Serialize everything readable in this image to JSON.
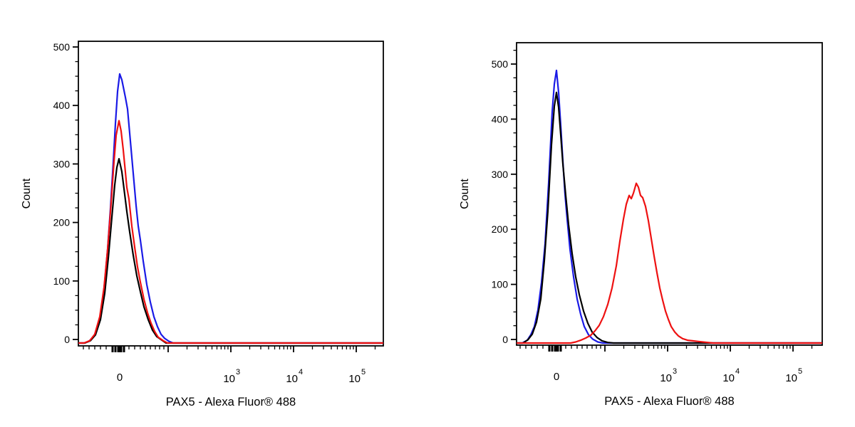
{
  "figure": {
    "description": "Two flow cytometry histogram overlays, side by side",
    "background_color": "#ffffff",
    "axis_color": "#000000"
  },
  "chart_data": [
    {
      "panel": "left",
      "type": "line",
      "subtype": "flow-cytometry-histogram",
      "title": "",
      "xlabel": "PAX5 - Alexa Fluor® 488",
      "ylabel": "Count",
      "x_axis": {
        "scale": "biexponential-logicle",
        "tick_labels": [
          "0",
          "10^3",
          "10^4",
          "10^5"
        ],
        "unlabeled_major_ticks": [
          "10^2"
        ],
        "display_max": "~2.6x10^5",
        "grid": false
      },
      "y_axis": {
        "ticks": [
          0,
          100,
          200,
          300,
          400,
          500
        ],
        "tick_labels": [
          "0",
          "100",
          "200",
          "300",
          "400",
          "500"
        ],
        "minor_step": 25,
        "ylim": [
          0,
          510
        ],
        "grid": false
      },
      "legend": null,
      "series": [
        {
          "name": "blue",
          "color": "#1a1ae6",
          "peak_count": 460,
          "peak_position": "0",
          "points_format": "[x_offset_px_from_zero_tick (88px per decade), count]",
          "points": [
            [
              -50,
              0
            ],
            [
              -43,
              3
            ],
            [
              -36,
              12
            ],
            [
              -30,
              30
            ],
            [
              -25,
              60
            ],
            [
              -21,
              105
            ],
            [
              -17,
              160
            ],
            [
              -13,
              230
            ],
            [
              -9,
              310
            ],
            [
              -6,
              375
            ],
            [
              -3,
              430
            ],
            [
              0,
              460
            ],
            [
              3,
              450
            ],
            [
              6,
              432
            ],
            [
              8,
              420
            ],
            [
              11,
              400
            ],
            [
              15,
              345
            ],
            [
              19,
              290
            ],
            [
              23,
              235
            ],
            [
              26,
              200
            ],
            [
              29,
              176
            ],
            [
              33,
              140
            ],
            [
              38,
              100
            ],
            [
              43,
              70
            ],
            [
              48,
              45
            ],
            [
              53,
              28
            ],
            [
              58,
              15
            ],
            [
              63,
              8
            ],
            [
              69,
              3
            ],
            [
              75,
              0
            ]
          ]
        },
        {
          "name": "black",
          "color": "#000000",
          "peak_count": 315,
          "peak_position": "0",
          "points_format": "[x_offset_px_from_zero_tick (88px per decade), count]",
          "points": [
            [
              -49,
              0
            ],
            [
              -41,
              4
            ],
            [
              -34,
              14
            ],
            [
              -27,
              40
            ],
            [
              -21,
              85
            ],
            [
              -16,
              145
            ],
            [
              -11,
              215
            ],
            [
              -7,
              270
            ],
            [
              -4,
              300
            ],
            [
              -1,
              315
            ],
            [
              3,
              293
            ],
            [
              6,
              264
            ],
            [
              10,
              225
            ],
            [
              14,
              190
            ],
            [
              19,
              150
            ],
            [
              24,
              115
            ],
            [
              29,
              88
            ],
            [
              34,
              62
            ],
            [
              40,
              40
            ],
            [
              46,
              22
            ],
            [
              52,
              11
            ],
            [
              59,
              5
            ],
            [
              65,
              0
            ]
          ]
        },
        {
          "name": "red",
          "color": "#ee1111",
          "peak_count": 380,
          "peak_position": "0",
          "points_format": "[x_offset_px_from_zero_tick (88px per decade), count]",
          "points": [
            [
              -50,
              0
            ],
            [
              -42,
              4
            ],
            [
              -35,
              15
            ],
            [
              -28,
              45
            ],
            [
              -22,
              95
            ],
            [
              -17,
              160
            ],
            [
              -12,
              240
            ],
            [
              -8,
              310
            ],
            [
              -5,
              355
            ],
            [
              -1,
              380
            ],
            [
              2,
              362
            ],
            [
              5,
              330
            ],
            [
              8,
              292
            ],
            [
              10,
              266
            ],
            [
              13,
              246
            ],
            [
              17,
              200
            ],
            [
              21,
              164
            ],
            [
              25,
              130
            ],
            [
              29,
              104
            ],
            [
              34,
              75
            ],
            [
              39,
              52
            ],
            [
              44,
              34
            ],
            [
              49,
              20
            ],
            [
              54,
              10
            ],
            [
              61,
              4
            ],
            [
              67,
              0
            ]
          ]
        }
      ]
    },
    {
      "panel": "right",
      "type": "line",
      "subtype": "flow-cytometry-histogram",
      "title": "",
      "xlabel": "PAX5 - Alexa Fluor® 488",
      "ylabel": "Count",
      "x_axis": {
        "scale": "biexponential-logicle",
        "tick_labels": [
          "0",
          "10^3",
          "10^4",
          "10^5"
        ],
        "unlabeled_major_ticks": [
          "10^2"
        ],
        "display_max": "~2.6x10^5",
        "grid": false
      },
      "y_axis": {
        "ticks": [
          0,
          100,
          200,
          300,
          400,
          500
        ],
        "tick_labels": [
          "0",
          "100",
          "200",
          "300",
          "400",
          "500"
        ],
        "minor_step": 25,
        "ylim": [
          0,
          540
        ],
        "grid": false
      },
      "legend": null,
      "series": [
        {
          "name": "blue",
          "color": "#1a1ae6",
          "peak_count": 495,
          "peak_position": "0",
          "points_format": "[x_offset_px_from_zero_tick (88px per decade), count]",
          "points": [
            [
              -48,
              0
            ],
            [
              -41,
              5
            ],
            [
              -36,
              15
            ],
            [
              -31,
              30
            ],
            [
              -26,
              60
            ],
            [
              -21,
              110
            ],
            [
              -16,
              180
            ],
            [
              -11,
              290
            ],
            [
              -6,
              420
            ],
            [
              -3,
              470
            ],
            [
              0,
              495
            ],
            [
              3,
              455
            ],
            [
              6,
              395
            ],
            [
              9,
              330
            ],
            [
              12,
              270
            ],
            [
              15,
              225
            ],
            [
              19,
              170
            ],
            [
              24,
              120
            ],
            [
              29,
              80
            ],
            [
              34,
              52
            ],
            [
              39,
              30
            ],
            [
              45,
              15
            ],
            [
              51,
              7
            ],
            [
              58,
              2
            ],
            [
              65,
              0
            ]
          ]
        },
        {
          "name": "black",
          "color": "#000000",
          "peak_count": 455,
          "peak_position": "0",
          "points_format": "[x_offset_px_from_zero_tick (88px per decade), count]",
          "points": [
            [
              -47,
              0
            ],
            [
              -40,
              6
            ],
            [
              -34,
              16
            ],
            [
              -28,
              38
            ],
            [
              -22,
              80
            ],
            [
              -17,
              150
            ],
            [
              -12,
              240
            ],
            [
              -7,
              360
            ],
            [
              -3,
              430
            ],
            [
              0,
              455
            ],
            [
              3,
              428
            ],
            [
              6,
              378
            ],
            [
              9,
              325
            ],
            [
              13,
              268
            ],
            [
              17,
              215
            ],
            [
              22,
              162
            ],
            [
              27,
              120
            ],
            [
              32,
              88
            ],
            [
              38,
              58
            ],
            [
              44,
              36
            ],
            [
              50,
              20
            ],
            [
              57,
              10
            ],
            [
              64,
              4
            ],
            [
              72,
              1
            ],
            [
              80,
              0
            ]
          ]
        },
        {
          "name": "red",
          "color": "#ee1111",
          "peak_count": 290,
          "peak_position": "~3-4x10^2 (between 10^2 and 10^3)",
          "points_format": "[x_offset_px_from_zero_tick (88px per decade), count]",
          "points": [
            [
              20,
              0
            ],
            [
              27,
              2
            ],
            [
              34,
              5
            ],
            [
              41,
              9
            ],
            [
              48,
              14
            ],
            [
              54,
              22
            ],
            [
              60,
              32
            ],
            [
              66,
              48
            ],
            [
              72,
              70
            ],
            [
              78,
              100
            ],
            [
              84,
              140
            ],
            [
              89,
              185
            ],
            [
              94,
              225
            ],
            [
              98,
              252
            ],
            [
              102,
              268
            ],
            [
              105,
              262
            ],
            [
              108,
              272
            ],
            [
              112,
              290
            ],
            [
              115,
              283
            ],
            [
              118,
              268
            ],
            [
              121,
              264
            ],
            [
              125,
              248
            ],
            [
              129,
              222
            ],
            [
              133,
              190
            ],
            [
              137,
              158
            ],
            [
              141,
              128
            ],
            [
              145,
              100
            ],
            [
              149,
              78
            ],
            [
              153,
              58
            ],
            [
              157,
              43
            ],
            [
              161,
              30
            ],
            [
              166,
              20
            ],
            [
              171,
              13
            ],
            [
              177,
              8
            ],
            [
              184,
              5
            ],
            [
              191,
              4
            ],
            [
              198,
              3
            ],
            [
              205,
              2
            ],
            [
              212,
              1
            ],
            [
              220,
              0
            ]
          ]
        }
      ]
    }
  ]
}
